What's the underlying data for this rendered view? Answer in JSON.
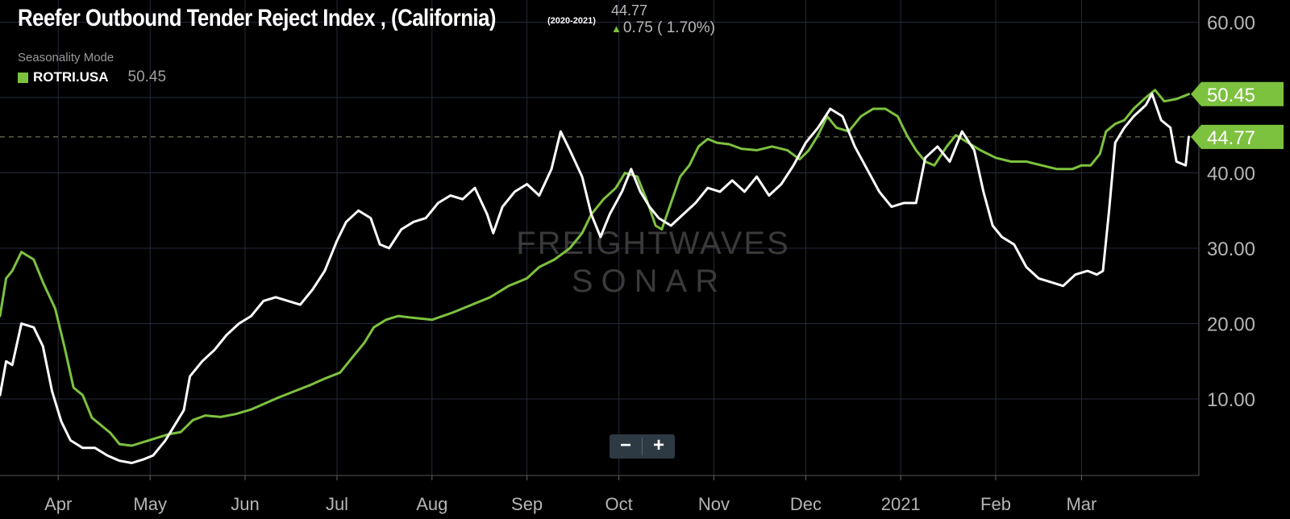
{
  "header": {
    "title": "Reefer Outbound Tender Reject Index , (California)",
    "years": "(2020-2021)",
    "current_value": "44.77",
    "change": "0.75 ( 1.70%)"
  },
  "legend": {
    "mode": "Seasonality Mode",
    "series_name": "ROTRI.USA",
    "series_value": "50.45"
  },
  "watermark": {
    "line1": "FREIGHTWAVES",
    "line2": "SONAR"
  },
  "zoom": {
    "minus": "−",
    "plus": "+"
  },
  "colors": {
    "background": "#000000",
    "grid": "#232a3a",
    "white_series": "#ffffff",
    "green_series": "#7dc23f",
    "value_label_bg": "#7dc23f"
  },
  "chart_data": {
    "type": "line",
    "x_domain": [
      "2020-03-13",
      "2021-03-19"
    ],
    "ylim": [
      0,
      62
    ],
    "y_ticks": [
      "10.00",
      "20.00",
      "30.00",
      "40.00",
      "50.00",
      "60.00"
    ],
    "x_ticks": [
      {
        "label": "Apr",
        "date": "2020-04-01"
      },
      {
        "label": "May",
        "date": "2020-05-01"
      },
      {
        "label": "Jun",
        "date": "2020-06-01"
      },
      {
        "label": "Jul",
        "date": "2020-07-01"
      },
      {
        "label": "Aug",
        "date": "2020-08-01"
      },
      {
        "label": "Sep",
        "date": "2020-09-01"
      },
      {
        "label": "Oct",
        "date": "2020-10-01"
      },
      {
        "label": "Nov",
        "date": "2020-11-01"
      },
      {
        "label": "Dec",
        "date": "2020-12-01"
      },
      {
        "label": "2021",
        "date": "2021-01-01"
      },
      {
        "label": "Feb",
        "date": "2021-02-01"
      },
      {
        "label": "Mar",
        "date": "2021-03-01"
      }
    ],
    "reference_value": 44.77,
    "end_labels": [
      {
        "value": 50.45,
        "text": "50.45",
        "series": "ROTRI.USA"
      },
      {
        "value": 44.77,
        "text": "44.77",
        "series": "California"
      }
    ],
    "series": [
      {
        "name": "ROTRI.USA",
        "color": "#7dc23f",
        "points": [
          [
            "2020-03-13",
            21.0
          ],
          [
            "2020-03-15",
            26.0
          ],
          [
            "2020-03-17",
            27.0
          ],
          [
            "2020-03-20",
            29.5
          ],
          [
            "2020-03-24",
            28.5
          ],
          [
            "2020-03-27",
            25.5
          ],
          [
            "2020-03-31",
            22.0
          ],
          [
            "2020-04-03",
            17.0
          ],
          [
            "2020-04-06",
            11.5
          ],
          [
            "2020-04-09",
            10.5
          ],
          [
            "2020-04-12",
            7.5
          ],
          [
            "2020-04-15",
            6.5
          ],
          [
            "2020-04-18",
            5.5
          ],
          [
            "2020-04-21",
            4.0
          ],
          [
            "2020-04-25",
            3.8
          ],
          [
            "2020-04-29",
            4.3
          ],
          [
            "2020-05-03",
            4.8
          ],
          [
            "2020-05-07",
            5.3
          ],
          [
            "2020-05-11",
            5.6
          ],
          [
            "2020-05-15",
            7.2
          ],
          [
            "2020-05-19",
            7.8
          ],
          [
            "2020-05-24",
            7.6
          ],
          [
            "2020-05-29",
            8.0
          ],
          [
            "2020-06-03",
            8.6
          ],
          [
            "2020-06-08",
            9.5
          ],
          [
            "2020-06-12",
            10.2
          ],
          [
            "2020-06-17",
            11.0
          ],
          [
            "2020-06-22",
            11.8
          ],
          [
            "2020-06-27",
            12.7
          ],
          [
            "2020-07-02",
            13.5
          ],
          [
            "2020-07-06",
            15.5
          ],
          [
            "2020-07-10",
            17.5
          ],
          [
            "2020-07-13",
            19.5
          ],
          [
            "2020-07-17",
            20.5
          ],
          [
            "2020-07-21",
            21.0
          ],
          [
            "2020-07-25",
            20.8
          ],
          [
            "2020-08-01",
            20.5
          ],
          [
            "2020-08-08",
            21.5
          ],
          [
            "2020-08-14",
            22.5
          ],
          [
            "2020-08-20",
            23.5
          ],
          [
            "2020-08-26",
            25.0
          ],
          [
            "2020-09-01",
            26.0
          ],
          [
            "2020-09-05",
            27.5
          ],
          [
            "2020-09-10",
            28.5
          ],
          [
            "2020-09-15",
            30.0
          ],
          [
            "2020-09-19",
            32.0
          ],
          [
            "2020-09-22",
            34.5
          ],
          [
            "2020-09-26",
            36.5
          ],
          [
            "2020-09-30",
            38.0
          ],
          [
            "2020-10-03",
            40.0
          ],
          [
            "2020-10-07",
            39.5
          ],
          [
            "2020-10-10",
            36.5
          ],
          [
            "2020-10-13",
            33.0
          ],
          [
            "2020-10-15",
            32.5
          ],
          [
            "2020-10-18",
            36.0
          ],
          [
            "2020-10-21",
            39.5
          ],
          [
            "2020-10-24",
            41.0
          ],
          [
            "2020-10-27",
            43.5
          ],
          [
            "2020-10-30",
            44.5
          ],
          [
            "2020-11-02",
            44.0
          ],
          [
            "2020-11-06",
            43.8
          ],
          [
            "2020-11-10",
            43.2
          ],
          [
            "2020-11-15",
            43.0
          ],
          [
            "2020-11-20",
            43.5
          ],
          [
            "2020-11-25",
            43.0
          ],
          [
            "2020-11-29",
            41.8
          ],
          [
            "2020-12-02",
            43.0
          ],
          [
            "2020-12-05",
            45.0
          ],
          [
            "2020-12-08",
            47.5
          ],
          [
            "2020-12-11",
            46.0
          ],
          [
            "2020-12-15",
            45.5
          ],
          [
            "2020-12-19",
            47.5
          ],
          [
            "2020-12-23",
            48.5
          ],
          [
            "2020-12-27",
            48.5
          ],
          [
            "2020-12-31",
            47.5
          ],
          [
            "2021-01-03",
            45.0
          ],
          [
            "2021-01-06",
            43.0
          ],
          [
            "2021-01-09",
            41.5
          ],
          [
            "2021-01-12",
            41.0
          ],
          [
            "2021-01-16",
            43.5
          ],
          [
            "2021-01-19",
            45.0
          ],
          [
            "2021-01-23",
            44.0
          ],
          [
            "2021-01-27",
            43.0
          ],
          [
            "2021-02-01",
            42.0
          ],
          [
            "2021-02-06",
            41.5
          ],
          [
            "2021-02-11",
            41.5
          ],
          [
            "2021-02-16",
            41.0
          ],
          [
            "2021-02-21",
            40.5
          ],
          [
            "2021-02-26",
            40.5
          ],
          [
            "2021-03-01",
            41.0
          ],
          [
            "2021-03-04",
            41.0
          ],
          [
            "2021-03-07",
            42.5
          ],
          [
            "2021-03-09",
            45.5
          ],
          [
            "2021-03-12",
            46.5
          ],
          [
            "2021-03-15",
            47.0
          ],
          [
            "2021-03-18",
            48.5
          ],
          [
            "2021-03-22",
            50.0
          ],
          [
            "2021-03-25",
            51.0
          ],
          [
            "2021-03-28",
            49.5
          ],
          [
            "2021-04-01",
            49.8
          ],
          [
            "2021-04-05",
            50.45
          ]
        ]
      },
      {
        "name": "",
        "color": "#ffffff",
        "points": [
          [
            "2020-03-13",
            10.5
          ],
          [
            "2020-03-15",
            15.0
          ],
          [
            "2020-03-17",
            14.5
          ],
          [
            "2020-03-20",
            20.0
          ],
          [
            "2020-03-24",
            19.5
          ],
          [
            "2020-03-27",
            17.0
          ],
          [
            "2020-03-30",
            11.0
          ],
          [
            "2020-04-02",
            7.0
          ],
          [
            "2020-04-05",
            4.5
          ],
          [
            "2020-04-09",
            3.5
          ],
          [
            "2020-04-13",
            3.5
          ],
          [
            "2020-04-17",
            2.5
          ],
          [
            "2020-04-21",
            1.8
          ],
          [
            "2020-04-25",
            1.5
          ],
          [
            "2020-04-29",
            2.0
          ],
          [
            "2020-05-02",
            2.5
          ],
          [
            "2020-05-06",
            4.5
          ],
          [
            "2020-05-09",
            6.5
          ],
          [
            "2020-05-12",
            8.5
          ],
          [
            "2020-05-14",
            13.0
          ],
          [
            "2020-05-18",
            15.0
          ],
          [
            "2020-05-22",
            16.5
          ],
          [
            "2020-05-26",
            18.5
          ],
          [
            "2020-05-30",
            20.0
          ],
          [
            "2020-06-03",
            21.0
          ],
          [
            "2020-06-07",
            23.0
          ],
          [
            "2020-06-11",
            23.5
          ],
          [
            "2020-06-15",
            23.0
          ],
          [
            "2020-06-19",
            22.5
          ],
          [
            "2020-06-23",
            24.5
          ],
          [
            "2020-06-27",
            27.0
          ],
          [
            "2020-07-01",
            31.0
          ],
          [
            "2020-07-04",
            33.5
          ],
          [
            "2020-07-08",
            35.0
          ],
          [
            "2020-07-12",
            34.0
          ],
          [
            "2020-07-15",
            30.5
          ],
          [
            "2020-07-18",
            30.0
          ],
          [
            "2020-07-22",
            32.5
          ],
          [
            "2020-07-26",
            33.5
          ],
          [
            "2020-07-30",
            34.0
          ],
          [
            "2020-08-03",
            36.0
          ],
          [
            "2020-08-07",
            37.0
          ],
          [
            "2020-08-11",
            36.5
          ],
          [
            "2020-08-15",
            38.0
          ],
          [
            "2020-08-19",
            34.5
          ],
          [
            "2020-08-21",
            32.0
          ],
          [
            "2020-08-24",
            35.5
          ],
          [
            "2020-08-28",
            37.5
          ],
          [
            "2020-09-01",
            38.5
          ],
          [
            "2020-09-05",
            37.0
          ],
          [
            "2020-09-09",
            40.5
          ],
          [
            "2020-09-12",
            45.5
          ],
          [
            "2020-09-15",
            43.0
          ],
          [
            "2020-09-19",
            39.5
          ],
          [
            "2020-09-22",
            34.5
          ],
          [
            "2020-09-25",
            31.5
          ],
          [
            "2020-09-28",
            34.5
          ],
          [
            "2020-10-02",
            37.5
          ],
          [
            "2020-10-05",
            40.5
          ],
          [
            "2020-10-08",
            37.5
          ],
          [
            "2020-10-11",
            35.5
          ],
          [
            "2020-10-14",
            34.0
          ],
          [
            "2020-10-18",
            33.0
          ],
          [
            "2020-10-22",
            34.5
          ],
          [
            "2020-10-26",
            36.0
          ],
          [
            "2020-10-30",
            38.0
          ],
          [
            "2020-11-03",
            37.5
          ],
          [
            "2020-11-07",
            39.0
          ],
          [
            "2020-11-11",
            37.5
          ],
          [
            "2020-11-15",
            39.5
          ],
          [
            "2020-11-19",
            37.0
          ],
          [
            "2020-11-23",
            38.5
          ],
          [
            "2020-11-27",
            41.0
          ],
          [
            "2020-12-01",
            44.0
          ],
          [
            "2020-12-05",
            46.0
          ],
          [
            "2020-12-09",
            48.5
          ],
          [
            "2020-12-13",
            47.5
          ],
          [
            "2020-12-17",
            43.5
          ],
          [
            "2020-12-21",
            40.5
          ],
          [
            "2020-12-25",
            37.5
          ],
          [
            "2020-12-29",
            35.5
          ],
          [
            "2021-01-02",
            36.0
          ],
          [
            "2021-01-06",
            36.0
          ],
          [
            "2021-01-09",
            42.0
          ],
          [
            "2021-01-13",
            43.5
          ],
          [
            "2021-01-17",
            41.5
          ],
          [
            "2021-01-21",
            45.5
          ],
          [
            "2021-01-25",
            43.0
          ],
          [
            "2021-01-28",
            37.5
          ],
          [
            "2021-01-31",
            33.0
          ],
          [
            "2021-02-03",
            31.5
          ],
          [
            "2021-02-07",
            30.5
          ],
          [
            "2021-02-11",
            27.5
          ],
          [
            "2021-02-15",
            26.0
          ],
          [
            "2021-02-19",
            25.5
          ],
          [
            "2021-02-23",
            25.0
          ],
          [
            "2021-02-27",
            26.5
          ],
          [
            "2021-03-03",
            27.0
          ],
          [
            "2021-03-06",
            26.5
          ],
          [
            "2021-03-08",
            27.0
          ],
          [
            "2021-03-10",
            35.0
          ],
          [
            "2021-03-12",
            44.0
          ],
          [
            "2021-03-15",
            46.0
          ],
          [
            "2021-03-18",
            47.5
          ],
          [
            "2021-03-22",
            49.0
          ],
          [
            "2021-03-24",
            50.5
          ],
          [
            "2021-03-27",
            47.0
          ],
          [
            "2021-03-30",
            46.0
          ],
          [
            "2021-04-01",
            41.5
          ],
          [
            "2021-04-04",
            41.0
          ],
          [
            "2021-04-05",
            44.77
          ]
        ]
      }
    ]
  }
}
